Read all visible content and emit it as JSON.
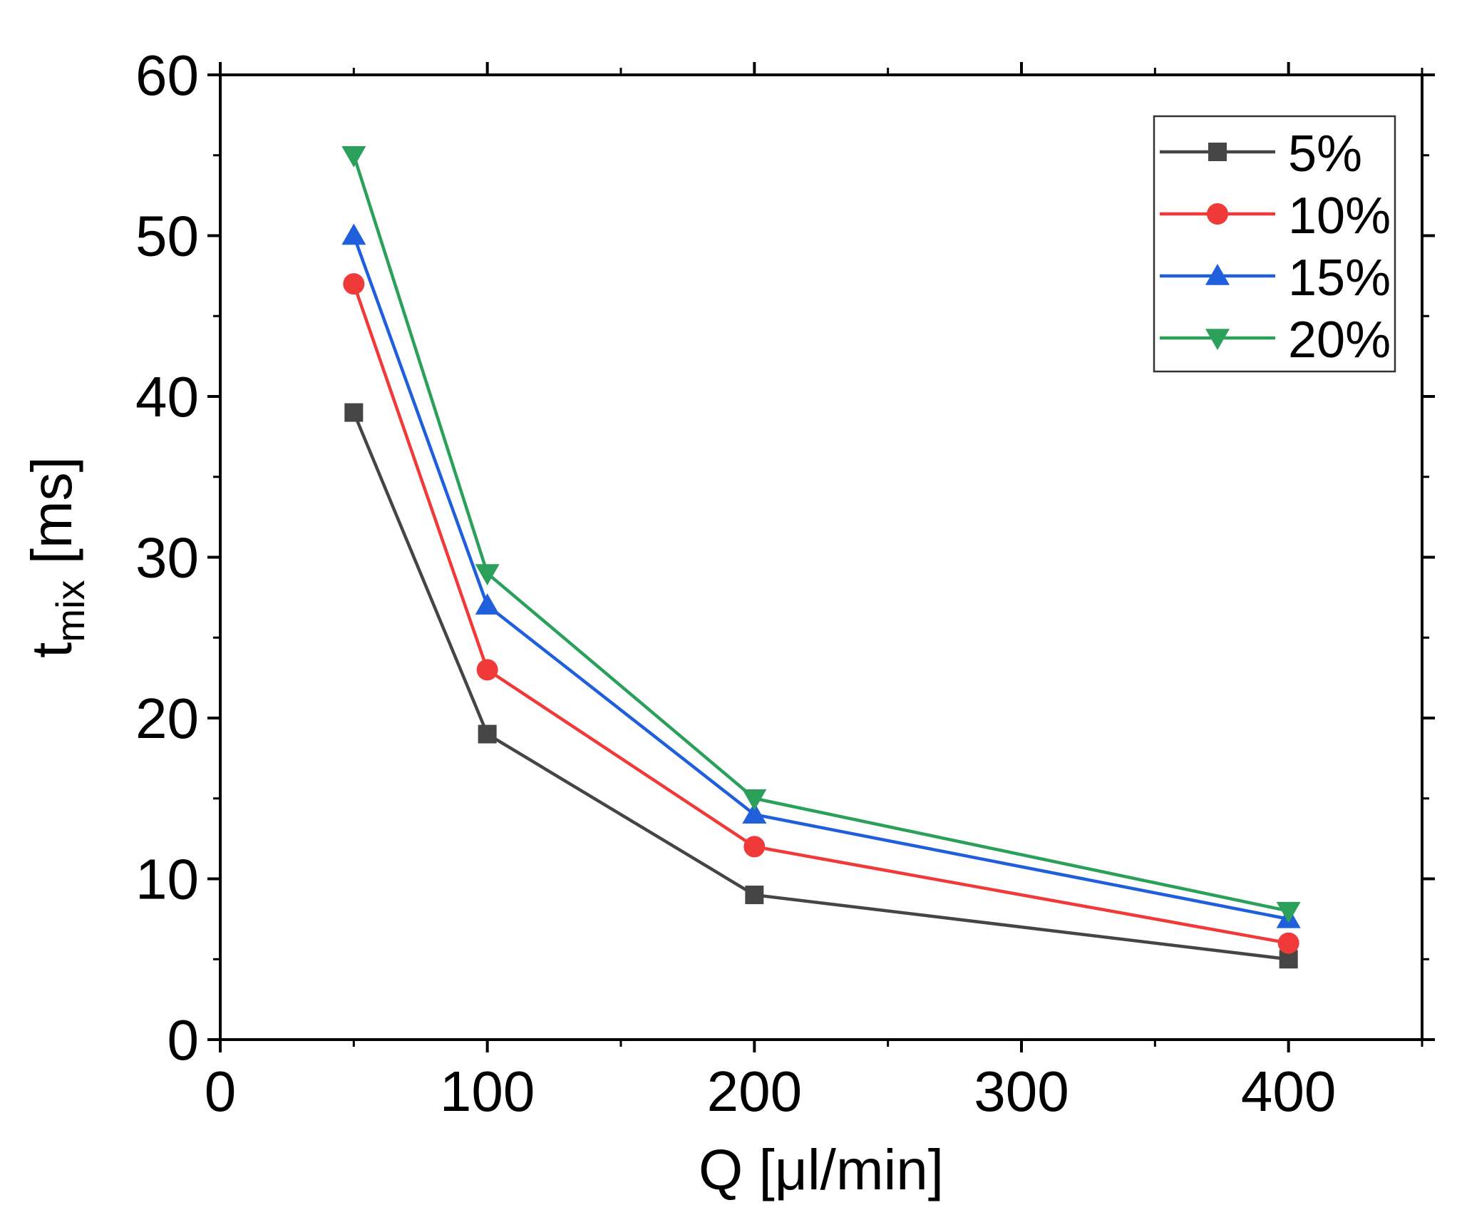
{
  "chart_data": {
    "type": "line",
    "title": "",
    "xlabel": "Q [μl/min]",
    "ylabel": {
      "main": "t",
      "sub": "mix",
      "unit": " [ms]"
    },
    "xlim": [
      0,
      450
    ],
    "ylim": [
      0,
      60
    ],
    "xticks": [
      0,
      100,
      200,
      300,
      400
    ],
    "yticks": [
      0,
      10,
      20,
      30,
      40,
      50,
      60
    ],
    "x": [
      50,
      100,
      200,
      400
    ],
    "series": [
      {
        "name": "5%",
        "color": "#454545",
        "marker": "square",
        "values": [
          39,
          19,
          9,
          5
        ]
      },
      {
        "name": "10%",
        "color": "#f03a3a",
        "marker": "circle",
        "values": [
          47,
          23,
          12,
          6
        ]
      },
      {
        "name": "15%",
        "color": "#1f5fdc",
        "marker": "triangle-up",
        "values": [
          50,
          27,
          14,
          7.5
        ]
      },
      {
        "name": "20%",
        "color": "#2aa05a",
        "marker": "triangle-down",
        "values": [
          55,
          29,
          15,
          8
        ]
      }
    ],
    "grid": false,
    "legend": "top-right"
  }
}
